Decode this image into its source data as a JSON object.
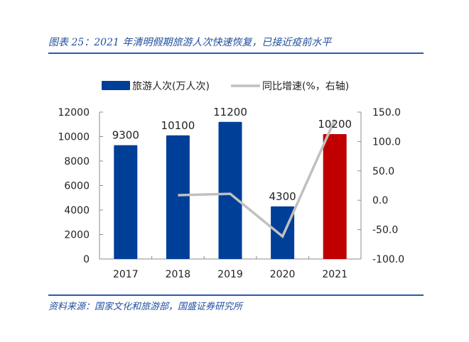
{
  "figure": {
    "title": "图表 25：2021 年清明假期旅游人次快速恢复，已接近疫前水平",
    "source": "资料来源：国家文化和旅游部，国盛证券研究所"
  },
  "colors": {
    "bar_default": "#003f98",
    "bar_highlight": "#c00000",
    "line": "#c0c0c0",
    "title_blue": "#1f4e9c",
    "axis": "#8c8c8c"
  },
  "chart_data": {
    "type": "bar+line",
    "title": "2021 年清明假期旅游人次快速恢复，已接近疫前水平",
    "categories": [
      "2017",
      "2018",
      "2019",
      "2020",
      "2021"
    ],
    "series": [
      {
        "name": "旅游人次(万人次)",
        "type": "bar",
        "axis": "left",
        "values": [
          9300,
          10100,
          11200,
          4300,
          10200
        ],
        "data_labels": [
          "9300",
          "10100",
          "11200",
          "4300",
          "10200"
        ],
        "highlight_index": 4
      },
      {
        "name": "同比增速(%，右轴)",
        "type": "line",
        "axis": "right",
        "values": [
          null,
          8.6,
          10.9,
          -61.6,
          137.2
        ]
      }
    ],
    "left_axis": {
      "ylim": [
        0,
        12000
      ],
      "ticks": [
        "0",
        "2000",
        "4000",
        "6000",
        "8000",
        "10000",
        "12000"
      ]
    },
    "right_axis": {
      "ylim": [
        -100,
        150
      ],
      "ticks": [
        "-100.0",
        "-50.0",
        "0.0",
        "50.0",
        "100.0",
        "150.0"
      ]
    },
    "legend": {
      "position": "top",
      "entries": [
        "旅游人次(万人次)",
        "同比增速(%，右轴)"
      ]
    },
    "grid": false,
    "xlabel": "",
    "ylabel": ""
  }
}
